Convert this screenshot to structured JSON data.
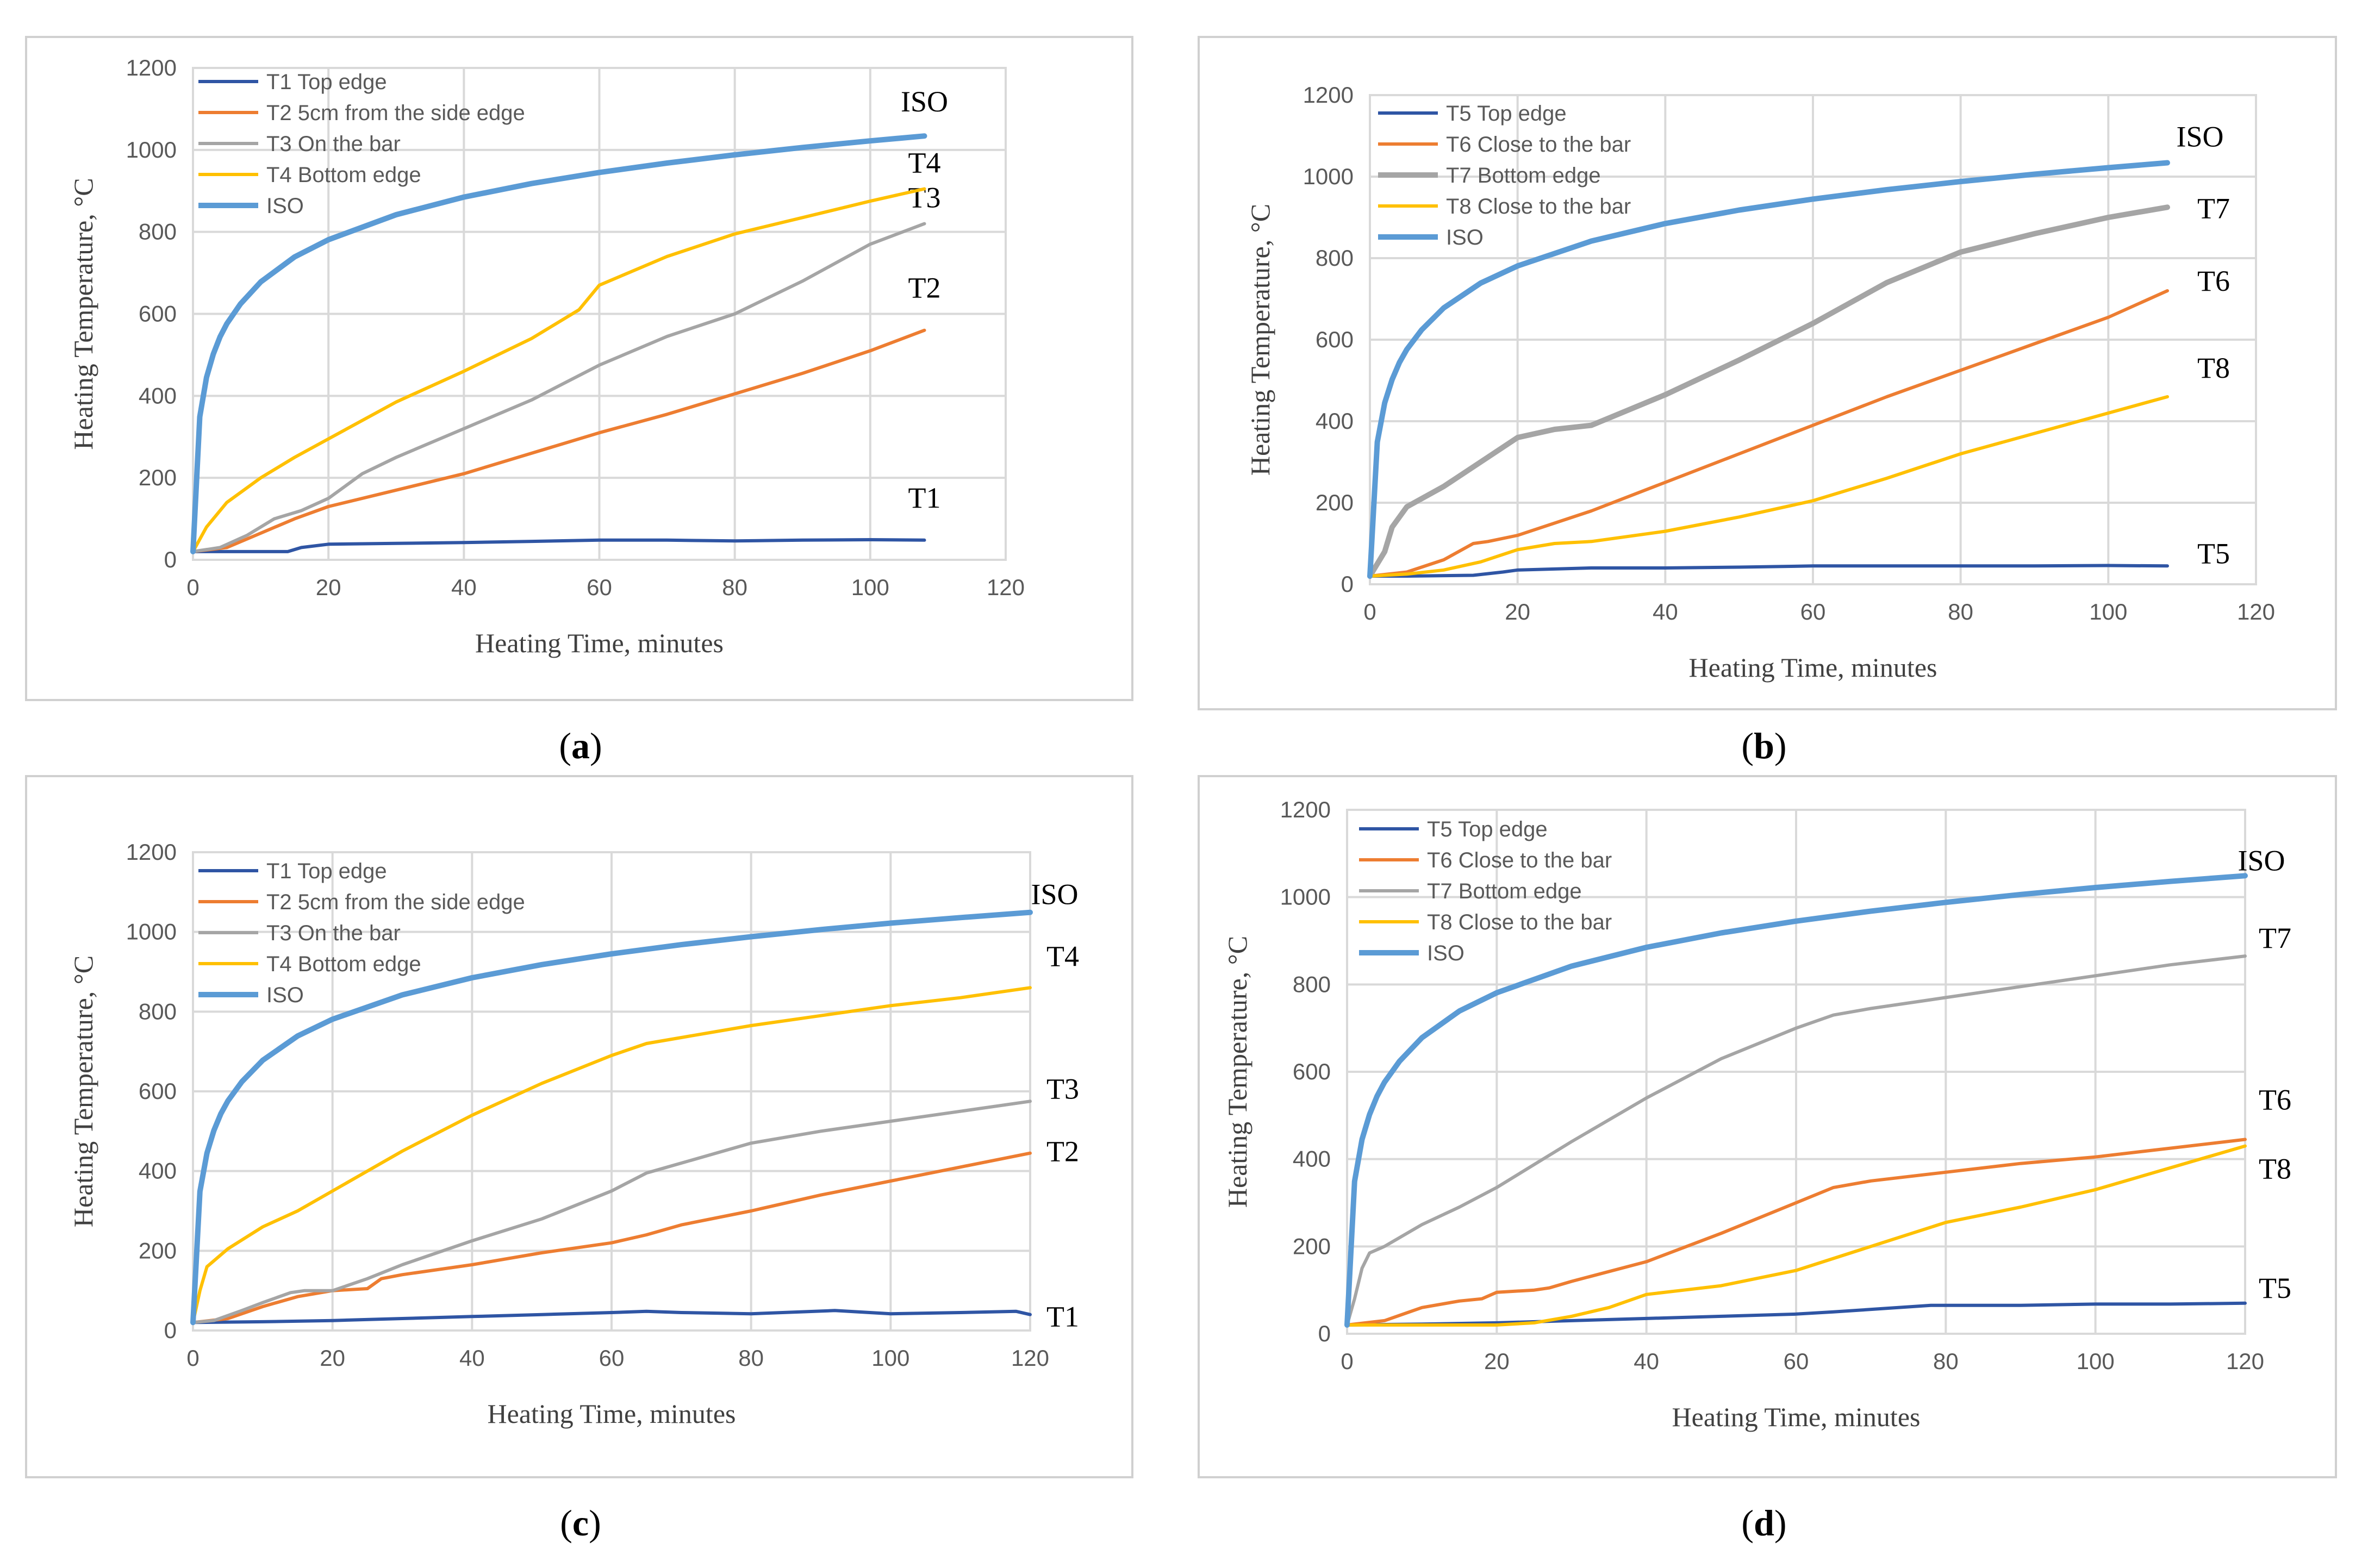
{
  "colors": {
    "blue": "#2f55a4",
    "orange": "#ed7d31",
    "gray": "#a5a5a5",
    "yellow": "#ffc000",
    "iso": "#5b9bd5"
  },
  "chart_data": [
    {
      "panel": "a",
      "type": "line",
      "xlabel": "Heating Time, minutes",
      "ylabel": "Heating Temperature, °C",
      "xlim": [
        0,
        120
      ],
      "ylim": [
        0,
        1200
      ],
      "xticks": [
        0,
        20,
        40,
        60,
        80,
        100,
        120
      ],
      "yticks": [
        0,
        200,
        400,
        600,
        800,
        1000,
        1200
      ],
      "legend_position": "top-left",
      "series": [
        {
          "name": "T1 Top edge",
          "end_label": "T1",
          "color": "#2f55a4",
          "x": [
            0,
            4,
            14,
            16,
            20,
            30,
            40,
            50,
            60,
            70,
            80,
            90,
            100,
            108
          ],
          "y": [
            20,
            20,
            20,
            30,
            38,
            40,
            42,
            45,
            48,
            48,
            46,
            48,
            49,
            48
          ]
        },
        {
          "name": "T2 5cm from the side edge",
          "end_label": "T2",
          "color": "#ed7d31",
          "x": [
            0,
            5,
            10,
            15,
            20,
            30,
            40,
            50,
            60,
            70,
            80,
            90,
            100,
            108
          ],
          "y": [
            20,
            30,
            65,
            100,
            130,
            170,
            210,
            260,
            310,
            355,
            405,
            455,
            510,
            560
          ]
        },
        {
          "name": "T3 On the bar",
          "end_label": "T3",
          "color": "#a5a5a5",
          "x": [
            0,
            4,
            8,
            12,
            16,
            20,
            25,
            30,
            40,
            50,
            60,
            70,
            80,
            90,
            100,
            108
          ],
          "y": [
            20,
            30,
            60,
            100,
            120,
            150,
            210,
            250,
            320,
            390,
            475,
            545,
            600,
            680,
            770,
            820
          ]
        },
        {
          "name": "T4 Bottom edge",
          "end_label": "T4",
          "color": "#ffc000",
          "x": [
            0,
            2,
            5,
            10,
            15,
            20,
            30,
            40,
            50,
            57,
            60,
            70,
            80,
            90,
            100,
            108
          ],
          "y": [
            20,
            80,
            140,
            200,
            250,
            295,
            385,
            460,
            540,
            610,
            670,
            740,
            795,
            835,
            875,
            905
          ]
        },
        {
          "name": "ISO",
          "end_label": "ISO",
          "color": "#5b9bd5",
          "x": [
            0,
            1,
            2,
            3,
            4,
            5,
            7,
            10,
            15,
            20,
            30,
            40,
            50,
            60,
            70,
            80,
            90,
            100,
            108
          ],
          "y": [
            20,
            349,
            445,
            502,
            544,
            576,
            624,
            678,
            739,
            781,
            842,
            885,
            918,
            945,
            968,
            988,
            1006,
            1022,
            1034
          ]
        }
      ]
    },
    {
      "panel": "b",
      "type": "line",
      "xlabel": "Heating Time, minutes",
      "ylabel": "Heating Temperature, °C",
      "xlim": [
        0,
        120
      ],
      "ylim": [
        0,
        1200
      ],
      "xticks": [
        0,
        20,
        40,
        60,
        80,
        100,
        120
      ],
      "yticks": [
        0,
        200,
        400,
        600,
        800,
        1000,
        1200
      ],
      "legend_position": "top-left",
      "series": [
        {
          "name": "T5 Top edge",
          "end_label": "T5",
          "color": "#2f55a4",
          "x": [
            0,
            5,
            14,
            18,
            20,
            30,
            40,
            50,
            60,
            70,
            80,
            90,
            100,
            108
          ],
          "y": [
            20,
            20,
            22,
            30,
            35,
            40,
            40,
            42,
            45,
            45,
            45,
            45,
            46,
            45
          ]
        },
        {
          "name": "T6 Close to the bar",
          "end_label": "T6",
          "color": "#ed7d31",
          "x": [
            0,
            5,
            10,
            14,
            16,
            20,
            30,
            40,
            50,
            60,
            70,
            80,
            90,
            100,
            108
          ],
          "y": [
            20,
            30,
            60,
            100,
            105,
            120,
            180,
            250,
            320,
            390,
            460,
            525,
            590,
            655,
            720
          ]
        },
        {
          "name": "T7 Bottom edge",
          "end_label": "T7",
          "color": "#a5a5a5",
          "x": [
            0,
            2,
            3,
            5,
            10,
            15,
            20,
            25,
            30,
            40,
            50,
            60,
            70,
            80,
            90,
            100,
            108
          ],
          "y": [
            20,
            80,
            140,
            190,
            240,
            300,
            360,
            380,
            390,
            465,
            550,
            640,
            740,
            815,
            860,
            900,
            925
          ]
        },
        {
          "name": "T8 Close to the bar",
          "end_label": "T8",
          "color": "#ffc000",
          "x": [
            0,
            5,
            10,
            15,
            20,
            25,
            30,
            40,
            50,
            60,
            70,
            80,
            90,
            100,
            108
          ],
          "y": [
            20,
            25,
            35,
            55,
            85,
            100,
            105,
            130,
            165,
            205,
            260,
            320,
            370,
            420,
            460
          ]
        },
        {
          "name": "ISO",
          "end_label": "ISO",
          "color": "#5b9bd5",
          "x": [
            0,
            1,
            2,
            3,
            4,
            5,
            7,
            10,
            15,
            20,
            30,
            40,
            50,
            60,
            70,
            80,
            90,
            100,
            108
          ],
          "y": [
            20,
            349,
            445,
            502,
            544,
            576,
            624,
            678,
            739,
            781,
            842,
            885,
            918,
            945,
            968,
            988,
            1006,
            1022,
            1034
          ]
        }
      ]
    },
    {
      "panel": "c",
      "type": "line",
      "xlabel": "Heating Time, minutes",
      "ylabel": "Heating Temperature, °C",
      "xlim": [
        0,
        120
      ],
      "ylim": [
        0,
        1200
      ],
      "xticks": [
        0,
        20,
        40,
        60,
        80,
        100,
        120
      ],
      "yticks": [
        0,
        200,
        400,
        600,
        800,
        1000,
        1200
      ],
      "legend_position": "top-left",
      "series": [
        {
          "name": "T1 Top edge",
          "end_label": "T1",
          "color": "#2f55a4",
          "x": [
            0,
            10,
            20,
            30,
            40,
            50,
            60,
            65,
            70,
            80,
            92,
            100,
            110,
            118,
            120
          ],
          "y": [
            20,
            22,
            25,
            30,
            35,
            40,
            45,
            48,
            45,
            42,
            50,
            42,
            45,
            48,
            40
          ]
        },
        {
          "name": "T2 5cm from the side edge",
          "end_label": "T2",
          "color": "#ed7d31",
          "x": [
            0,
            5,
            10,
            15,
            20,
            25,
            27,
            30,
            40,
            50,
            60,
            65,
            70,
            80,
            90,
            100,
            110,
            120
          ],
          "y": [
            20,
            30,
            60,
            85,
            100,
            105,
            130,
            140,
            165,
            195,
            220,
            240,
            265,
            300,
            340,
            375,
            410,
            445
          ]
        },
        {
          "name": "T3 On the bar",
          "end_label": "T3",
          "color": "#a5a5a5",
          "x": [
            0,
            3,
            7,
            10,
            14,
            16,
            20,
            25,
            30,
            40,
            50,
            60,
            65,
            70,
            80,
            90,
            100,
            110,
            120
          ],
          "y": [
            20,
            25,
            50,
            70,
            95,
            100,
            100,
            130,
            165,
            225,
            280,
            350,
            395,
            420,
            470,
            500,
            525,
            550,
            575
          ]
        },
        {
          "name": "T4 Bottom edge",
          "end_label": "T4",
          "color": "#ffc000",
          "x": [
            0,
            1,
            2,
            5,
            10,
            15,
            20,
            30,
            40,
            50,
            60,
            65,
            70,
            80,
            90,
            100,
            110,
            120
          ],
          "y": [
            20,
            100,
            160,
            205,
            260,
            300,
            350,
            450,
            540,
            620,
            690,
            720,
            735,
            765,
            790,
            815,
            835,
            860
          ]
        },
        {
          "name": "ISO",
          "end_label": "ISO",
          "color": "#5b9bd5",
          "x": [
            0,
            1,
            2,
            3,
            4,
            5,
            7,
            10,
            15,
            20,
            30,
            40,
            50,
            60,
            70,
            80,
            90,
            100,
            110,
            120
          ],
          "y": [
            20,
            349,
            445,
            502,
            544,
            576,
            624,
            678,
            739,
            781,
            842,
            885,
            918,
            945,
            968,
            988,
            1006,
            1022,
            1036,
            1049
          ]
        }
      ]
    },
    {
      "panel": "d",
      "type": "line",
      "xlabel": "Heating Time, minutes",
      "ylabel": "Heating Temperature, °C",
      "xlim": [
        0,
        120
      ],
      "ylim": [
        0,
        1200
      ],
      "xticks": [
        0,
        20,
        40,
        60,
        80,
        100,
        120
      ],
      "yticks": [
        0,
        200,
        400,
        600,
        800,
        1000,
        1200
      ],
      "legend_position": "top-left",
      "series": [
        {
          "name": "T5 Top edge",
          "end_label": "T5",
          "color": "#2f55a4",
          "x": [
            0,
            10,
            20,
            30,
            40,
            50,
            60,
            65,
            78,
            90,
            100,
            110,
            120
          ],
          "y": [
            20,
            22,
            25,
            30,
            35,
            40,
            45,
            50,
            65,
            65,
            68,
            68,
            70
          ]
        },
        {
          "name": "T6 Close to the bar",
          "end_label": "T6",
          "color": "#ed7d31",
          "x": [
            0,
            5,
            10,
            15,
            18,
            20,
            25,
            27,
            30,
            40,
            50,
            60,
            65,
            70,
            80,
            90,
            100,
            110,
            120
          ],
          "y": [
            20,
            30,
            60,
            75,
            80,
            95,
            100,
            105,
            120,
            165,
            230,
            300,
            335,
            350,
            370,
            390,
            405,
            425,
            445
          ]
        },
        {
          "name": "T7 Bottom edge",
          "end_label": "T7",
          "color": "#a5a5a5",
          "x": [
            0,
            1,
            2,
            3,
            5,
            10,
            15,
            20,
            30,
            40,
            50,
            60,
            65,
            70,
            80,
            90,
            100,
            110,
            120
          ],
          "y": [
            20,
            80,
            150,
            185,
            200,
            250,
            290,
            335,
            440,
            540,
            630,
            700,
            730,
            745,
            770,
            795,
            820,
            845,
            865
          ]
        },
        {
          "name": "T8 Close to the bar",
          "end_label": "T8",
          "color": "#ffc000",
          "x": [
            0,
            10,
            20,
            25,
            30,
            35,
            40,
            45,
            50,
            60,
            70,
            80,
            90,
            100,
            110,
            120
          ],
          "y": [
            20,
            20,
            20,
            25,
            40,
            60,
            90,
            100,
            110,
            145,
            200,
            255,
            290,
            330,
            380,
            430
          ]
        },
        {
          "name": "ISO",
          "end_label": "ISO",
          "color": "#5b9bd5",
          "x": [
            0,
            1,
            2,
            3,
            4,
            5,
            7,
            10,
            15,
            20,
            30,
            40,
            50,
            60,
            70,
            80,
            90,
            100,
            110,
            120
          ],
          "y": [
            20,
            349,
            445,
            502,
            544,
            576,
            624,
            678,
            739,
            781,
            842,
            885,
            918,
            945,
            968,
            988,
            1006,
            1022,
            1036,
            1049
          ]
        }
      ]
    }
  ]
}
